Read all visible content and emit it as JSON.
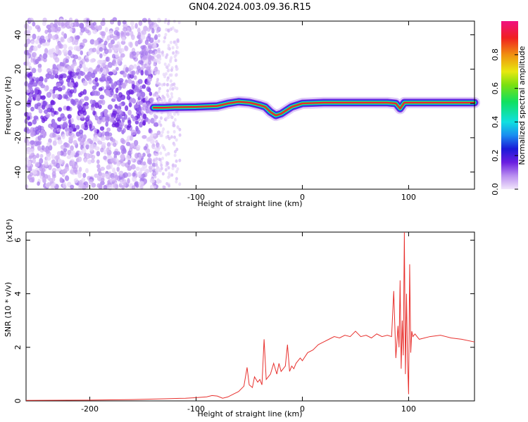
{
  "title": "GN04.2024.003.09.36.R15",
  "chart_data": [
    {
      "type": "heatmap",
      "xlabel": "Height of straight line (km)",
      "ylabel": "Frequency (Hz)",
      "xlim": [
        -260,
        162
      ],
      "ylim": [
        -50,
        48
      ],
      "xticks": [
        -200,
        -100,
        0,
        100
      ],
      "yticks": [
        40,
        20,
        0,
        -20,
        -40
      ],
      "colorbar": {
        "label": "Normalized spectral amplitude",
        "range": [
          0.0,
          1.0
        ],
        "ticks": [
          0.0,
          0.2,
          0.4,
          0.6,
          0.8
        ],
        "tick_labels": [
          "0.0",
          "0.2",
          "0.4",
          "0.6",
          "0.8"
        ]
      },
      "ridge": {
        "x": [
          -140,
          -130,
          -120,
          -100,
          -80,
          -70,
          -60,
          -50,
          -40,
          -35,
          -30,
          -25,
          -20,
          -15,
          -10,
          0,
          20,
          40,
          60,
          80,
          88,
          92,
          96,
          100,
          130,
          162
        ],
        "y": [
          -2.5,
          -2.5,
          -2.2,
          -2,
          -1.5,
          0,
          1,
          0.5,
          -1,
          -2,
          -5,
          -7,
          -6,
          -4,
          -2,
          0,
          0.5,
          0.5,
          0.5,
          0.5,
          0,
          -3,
          0.5,
          0.5,
          0.5,
          0.5
        ]
      }
    },
    {
      "type": "line",
      "xlabel": "Height of straight line (km)",
      "ylabel": "SNR (10 * v/v)",
      "yscale_label": "(x10⁴)",
      "xlim": [
        -260,
        162
      ],
      "ylim": [
        0,
        6.3
      ],
      "xticks": [
        -200,
        -100,
        0,
        100
      ],
      "yticks": [
        0,
        2,
        4,
        6
      ],
      "color": "#e8312e",
      "series": [
        {
          "x": [
            -260,
            -200,
            -160,
            -130,
            -110,
            -100,
            -90,
            -85,
            -80,
            -75,
            -70,
            -65,
            -60,
            -55,
            -52,
            -50,
            -47,
            -45,
            -42,
            -40,
            -38,
            -36,
            -34,
            -32,
            -30,
            -27,
            -24,
            -22,
            -20,
            -18,
            -16,
            -14,
            -12,
            -10,
            -8,
            -6,
            -4,
            -2,
            0,
            5,
            10,
            15,
            20,
            25,
            30,
            35,
            40,
            45,
            50,
            55,
            60,
            65,
            70,
            75,
            80,
            84,
            86,
            88,
            90,
            91,
            92,
            93,
            94,
            95,
            96,
            97,
            98,
            99,
            100,
            101,
            102,
            103,
            104,
            106,
            110,
            120,
            130,
            140,
            150,
            162
          ],
          "y": [
            0.02,
            0.03,
            0.05,
            0.08,
            0.1,
            0.12,
            0.15,
            0.2,
            0.18,
            0.1,
            0.15,
            0.25,
            0.35,
            0.55,
            1.25,
            0.6,
            0.5,
            0.9,
            0.7,
            0.8,
            0.6,
            2.3,
            0.8,
            0.9,
            1.0,
            1.4,
            1.0,
            1.4,
            1.1,
            1.2,
            1.3,
            2.1,
            1.1,
            1.3,
            1.2,
            1.4,
            1.5,
            1.6,
            1.5,
            1.8,
            1.9,
            2.1,
            2.2,
            2.3,
            2.4,
            2.35,
            2.45,
            2.4,
            2.6,
            2.4,
            2.45,
            2.35,
            2.5,
            2.4,
            2.45,
            2.4,
            4.1,
            1.6,
            2.8,
            2.0,
            4.5,
            1.2,
            3.0,
            1.7,
            6.3,
            1.0,
            4.0,
            1.5,
            0.25,
            5.1,
            1.8,
            2.6,
            2.4,
            2.5,
            2.3,
            2.4,
            2.45,
            2.35,
            2.3,
            2.2
          ]
        }
      ]
    }
  ]
}
